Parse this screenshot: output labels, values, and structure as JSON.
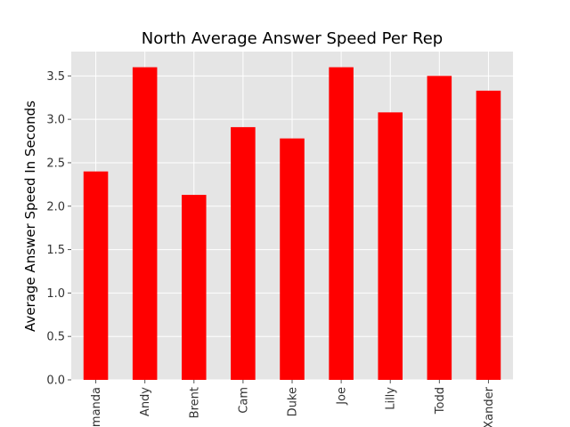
{
  "chart_data": {
    "type": "bar",
    "title": "North Average Answer Speed Per Rep",
    "xlabel": "",
    "ylabel": "Average Answer Speed In Seconds",
    "categories": [
      "Amanda",
      "Andy",
      "Brent",
      "Cam",
      "Duke",
      "Joe",
      "Lilly",
      "Todd",
      "Xander"
    ],
    "values": [
      2.4,
      3.6,
      2.13,
      2.91,
      2.78,
      3.6,
      3.08,
      3.5,
      3.33
    ],
    "ylim": [
      0,
      3.78
    ],
    "yticks": [
      "0.0",
      "0.5",
      "1.0",
      "1.5",
      "2.0",
      "2.5",
      "3.0",
      "3.5"
    ],
    "grid": true,
    "colors": {
      "bar": "#ff0000",
      "plot_background": "#e5e5e5",
      "grid": "#ffffff"
    }
  }
}
